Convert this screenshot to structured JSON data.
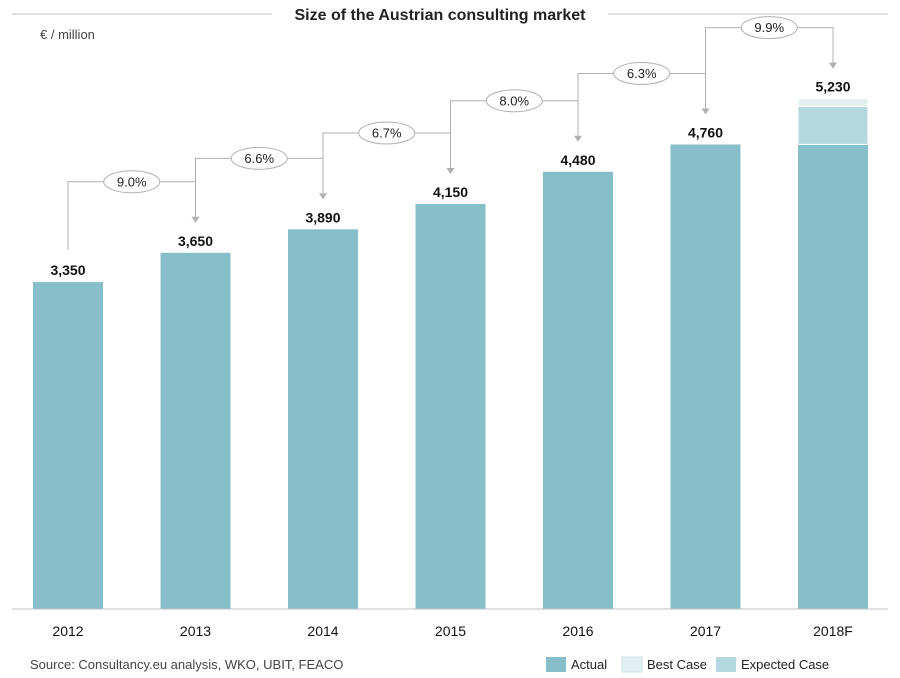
{
  "chart_data": {
    "type": "bar",
    "title": "Size of the Austrian consulting market",
    "unit_label": "€ / million",
    "categories": [
      "2012",
      "2013",
      "2014",
      "2015",
      "2016",
      "2017",
      "2018F"
    ],
    "value_labels": [
      "3,350",
      "3,650",
      "3,890",
      "4,150",
      "4,480",
      "4,760",
      "5,230"
    ],
    "series": [
      {
        "name": "Actual",
        "values": [
          3350,
          3650,
          3890,
          4150,
          4480,
          4760,
          4760
        ],
        "color": "#86bfc9"
      },
      {
        "name": "Expected Case",
        "values": [
          0,
          0,
          0,
          0,
          0,
          0,
          390
        ],
        "color": "#b5d8df"
      },
      {
        "name": "Best Case",
        "values": [
          0,
          0,
          0,
          0,
          0,
          0,
          80
        ],
        "color": "#e3f0f2"
      }
    ],
    "growth_rates": [
      "9.0%",
      "6.6%",
      "6.7%",
      "8.0%",
      "6.3%",
      "9.9%"
    ],
    "ylim": [
      0,
      5400
    ],
    "grid": false,
    "legend_position": "bottom-right",
    "legend": [
      "Actual",
      "Best Case",
      "Expected Case"
    ],
    "source": "Source: Consultancy.eu analysis, WKO, UBIT, FEACO"
  }
}
